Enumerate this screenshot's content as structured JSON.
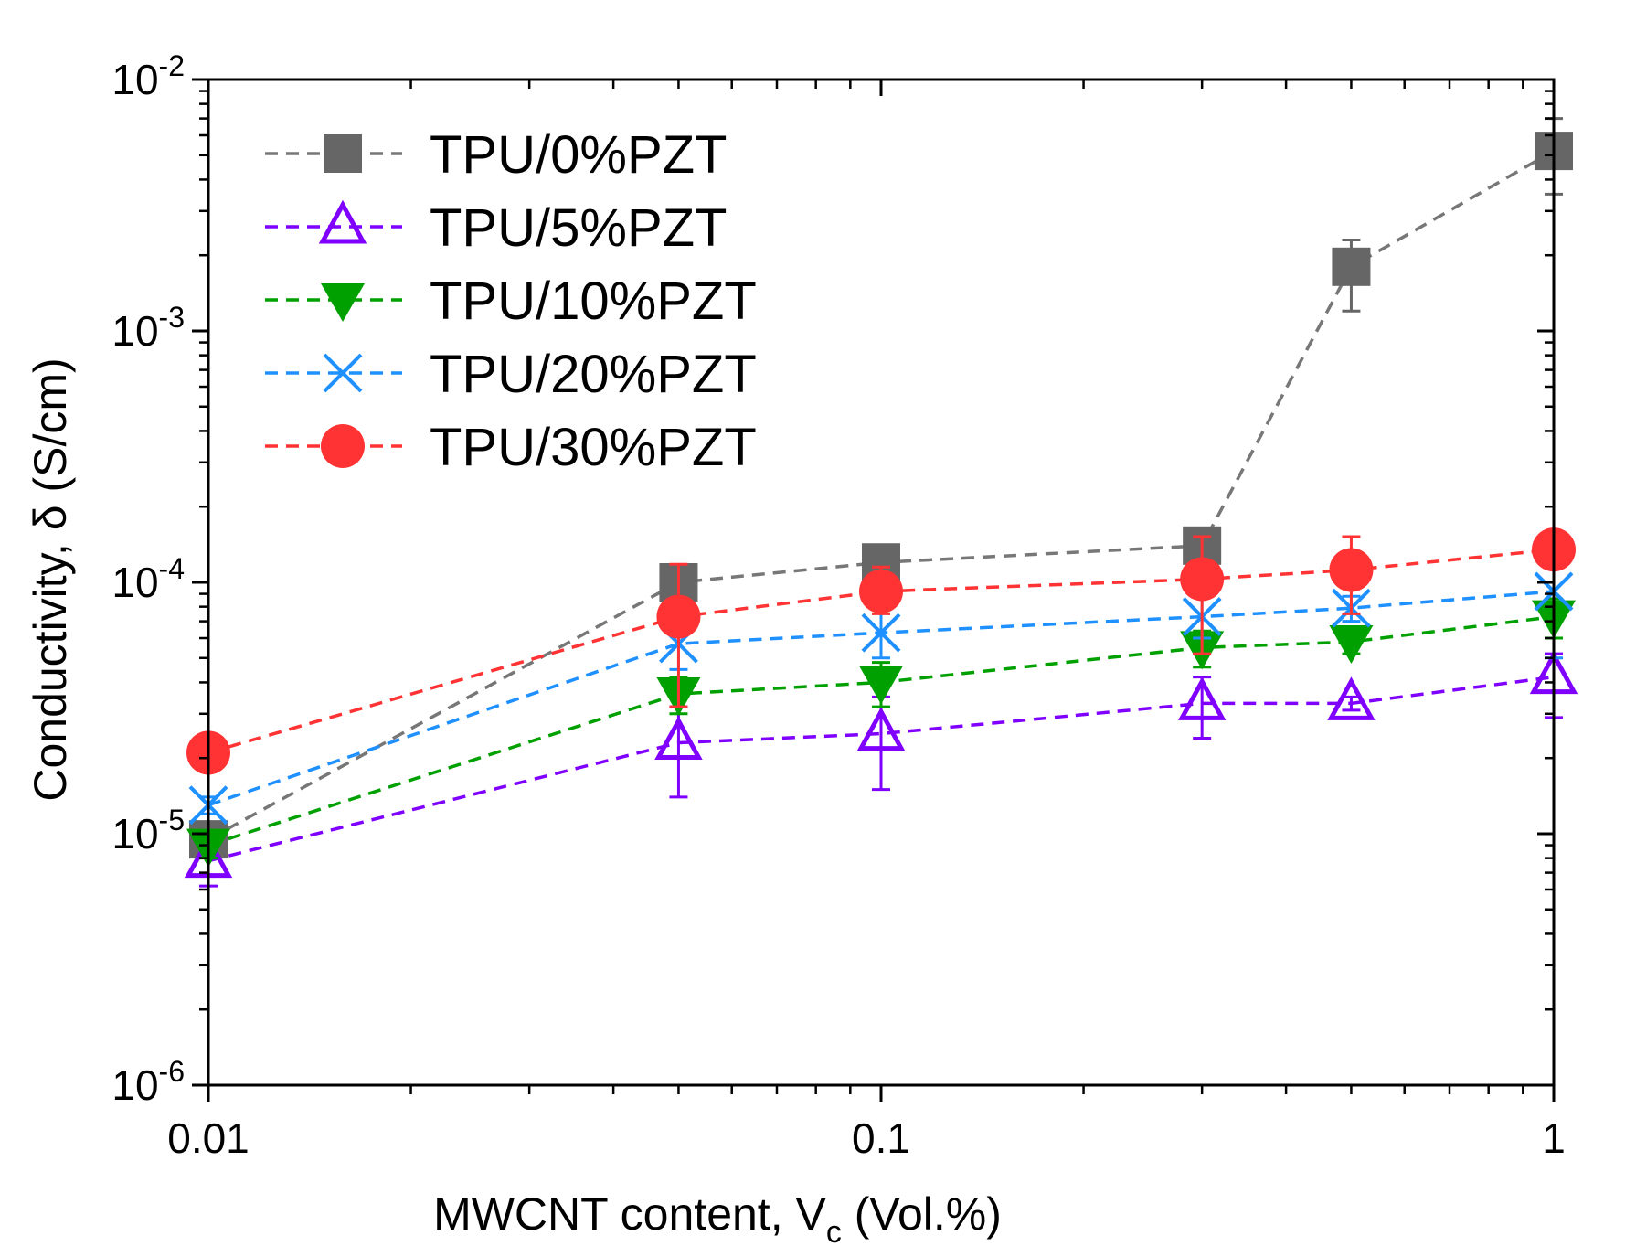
{
  "chart_data": {
    "type": "scatter",
    "title": "",
    "xlabel": "MWCNT content, V",
    "xlabel_sub": "c",
    "xlabel_suffix": " (Vol.%)",
    "ylabel": "Conductivity, δ (S/cm)",
    "xscale": "log",
    "yscale": "log",
    "xlim": [
      0.01,
      1
    ],
    "ylim": [
      1e-06,
      0.01
    ],
    "x_ticks": [
      {
        "value": 0.01,
        "label": "0.01"
      },
      {
        "value": 0.1,
        "label": "0.1"
      },
      {
        "value": 1,
        "label": "1"
      }
    ],
    "y_ticks": [
      {
        "value": 1e-06,
        "base": "10",
        "exp": "-6"
      },
      {
        "value": 1e-05,
        "base": "10",
        "exp": "-5"
      },
      {
        "value": 0.0001,
        "base": "10",
        "exp": "-4"
      },
      {
        "value": 0.001,
        "base": "10",
        "exp": "-3"
      },
      {
        "value": 0.01,
        "base": "10",
        "exp": "-2"
      }
    ],
    "grid": false,
    "legend_position": "top-left",
    "x": [
      0.01,
      0.05,
      0.1,
      0.3,
      0.5,
      1
    ],
    "series": [
      {
        "name": "TPU/0%PZT",
        "marker": "square",
        "color": "#666666",
        "line_color": "#777777",
        "values": [
          9.5e-06,
          0.0001,
          0.00012,
          0.00014,
          0.0018,
          0.0052
        ],
        "errors": [
          [
            8.5e-06,
            1e-05
          ],
          [
            9e-05,
            0.00011
          ],
          [
            0.00011,
            0.00013
          ],
          [
            0.00013,
            0.00015
          ],
          [
            0.0012,
            0.0023
          ],
          [
            0.0035,
            0.007
          ]
        ]
      },
      {
        "name": "TPU/5%PZT",
        "marker": "triangle-up",
        "color": "#7f00ff",
        "line_color": "#7f00ff",
        "values": [
          7.8e-06,
          2.3e-05,
          2.5e-05,
          3.3e-05,
          3.3e-05,
          4.2e-05
        ],
        "errors": [
          [
            6.2e-06,
            9.5e-06
          ],
          [
            1.4e-05,
            3.2e-05
          ],
          [
            1.5e-05,
            3.5e-05
          ],
          [
            2.4e-05,
            4.2e-05
          ],
          [
            3.1e-05,
            3.5e-05
          ],
          [
            2.9e-05,
            5.2e-05
          ]
        ]
      },
      {
        "name": "TPU/10%PZT",
        "marker": "triangle-down",
        "color": "#00a000",
        "line_color": "#00a000",
        "values": [
          9e-06,
          3.6e-05,
          4e-05,
          5.5e-05,
          5.8e-05,
          7.3e-05
        ],
        "errors": [
          [
            8e-06,
            1e-05
          ],
          [
            3e-05,
            4.2e-05
          ],
          [
            3.2e-05,
            4.8e-05
          ],
          [
            4.6e-05,
            6.4e-05
          ],
          [
            5.2e-05,
            6.4e-05
          ],
          [
            6e-05,
            8.6e-05
          ]
        ]
      },
      {
        "name": "TPU/20%PZT",
        "marker": "x",
        "color": "#1e90ff",
        "line_color": "#1e90ff",
        "values": [
          1.3e-05,
          5.7e-05,
          6.3e-05,
          7.3e-05,
          7.9e-05,
          9.2e-05
        ],
        "errors": [
          [
            1.2e-05,
            1.4e-05
          ],
          [
            4.5e-05,
            7.9e-05
          ],
          [
            5e-05,
            7.9e-05
          ],
          [
            6e-05,
            9.5e-05
          ],
          [
            7e-05,
            8.8e-05
          ],
          [
            5e-05,
            0.000135
          ]
        ]
      },
      {
        "name": "TPU/30%PZT",
        "marker": "circle",
        "color": "#ff3333",
        "line_color": "#ff3333",
        "values": [
          2.1e-05,
          7.3e-05,
          9.2e-05,
          0.000103,
          0.000112,
          0.000135
        ],
        "errors": [
          [
            2e-05,
            2.2e-05
          ],
          [
            3.2e-05,
            0.000118
          ],
          [
            7.5e-05,
            0.000115
          ],
          [
            5.2e-05,
            0.000152
          ],
          [
            7.5e-05,
            0.000152
          ],
          [
            0.00012,
            0.00015
          ]
        ]
      }
    ]
  }
}
